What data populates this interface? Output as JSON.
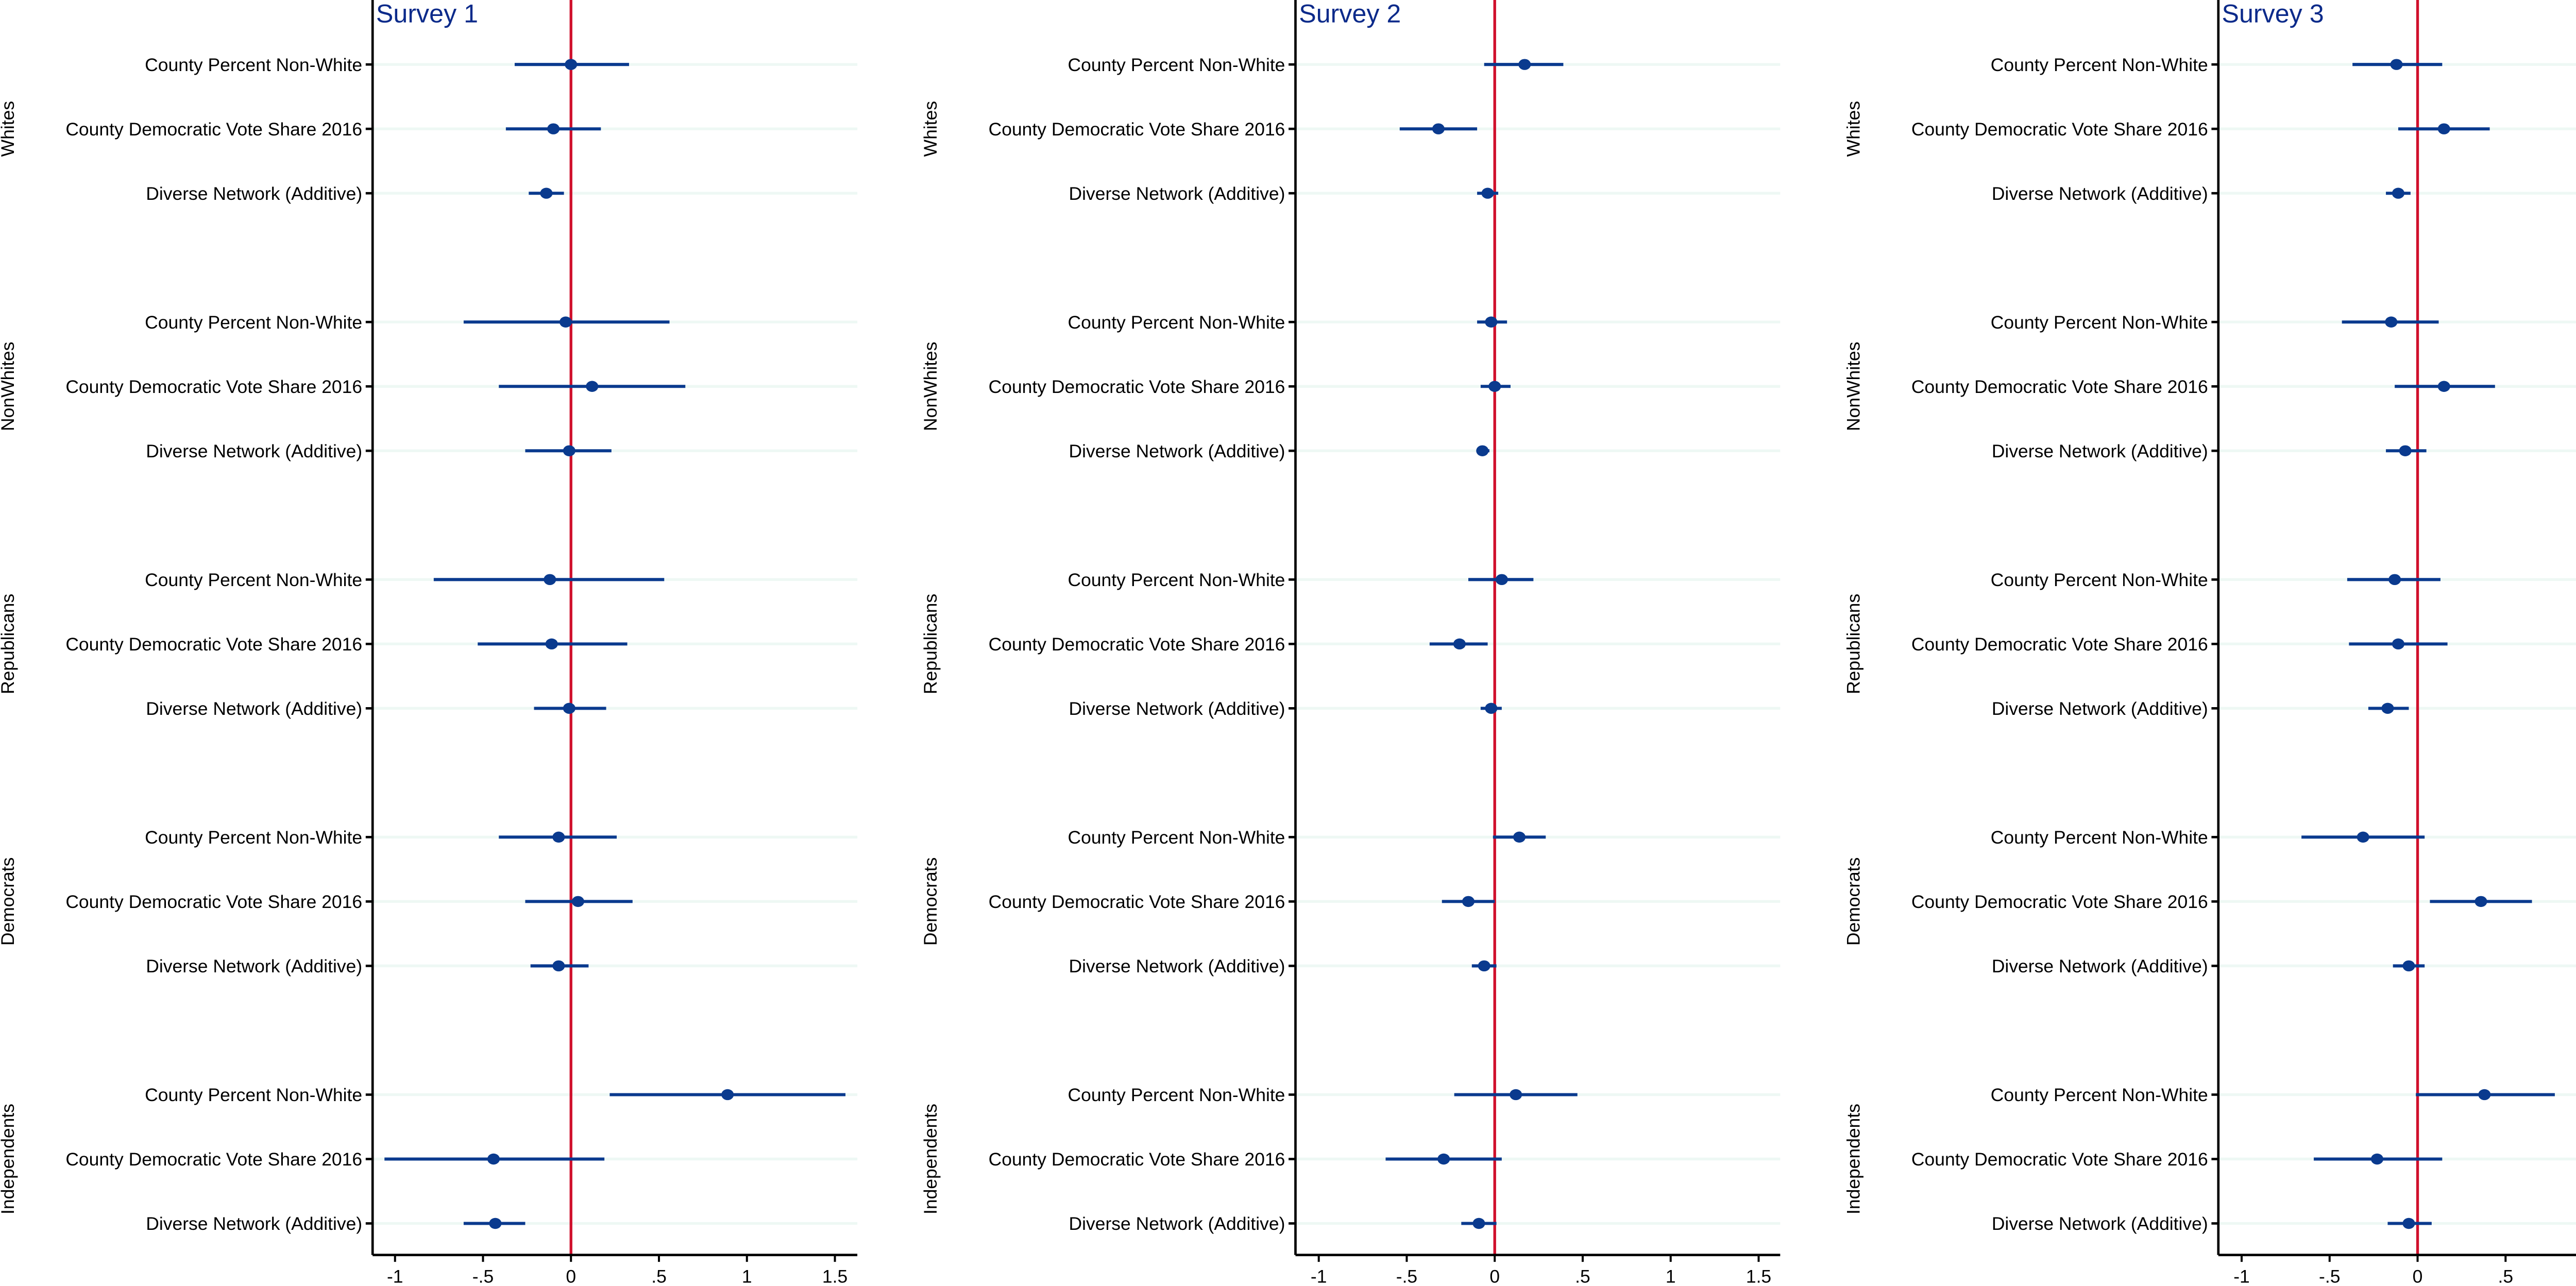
{
  "chart_data": [
    {
      "type": "scatter",
      "title": "Survey 1",
      "xlim": [
        -1.13,
        1.63
      ],
      "xticks": [
        -1,
        -0.5,
        0,
        0.5,
        1,
        1.5
      ],
      "xtick_labels": [
        "-1",
        "-.5",
        "0",
        ".5",
        "1",
        "1.5"
      ],
      "reference_line": 0,
      "grid": true,
      "groups": [
        {
          "name": "Whites",
          "rows": [
            {
              "label": "County Percent Non-White",
              "estimate": 0.0,
              "ci": [
                -0.32,
                0.33
              ]
            },
            {
              "label": "County Democratic Vote Share 2016",
              "estimate": -0.1,
              "ci": [
                -0.37,
                0.17
              ]
            },
            {
              "label": "Diverse Network (Additive)",
              "estimate": -0.14,
              "ci": [
                -0.24,
                -0.04
              ]
            }
          ]
        },
        {
          "name": "NonWhites",
          "rows": [
            {
              "label": "County Percent Non-White",
              "estimate": -0.03,
              "ci": [
                -0.61,
                0.56
              ]
            },
            {
              "label": "County Democratic Vote Share 2016",
              "estimate": 0.12,
              "ci": [
                -0.41,
                0.65
              ]
            },
            {
              "label": "Diverse Network (Additive)",
              "estimate": -0.01,
              "ci": [
                -0.26,
                0.23
              ]
            }
          ]
        },
        {
          "name": "Republicans",
          "rows": [
            {
              "label": "County Percent Non-White",
              "estimate": -0.12,
              "ci": [
                -0.78,
                0.53
              ]
            },
            {
              "label": "County Democratic Vote Share 2016",
              "estimate": -0.11,
              "ci": [
                -0.53,
                0.32
              ]
            },
            {
              "label": "Diverse Network (Additive)",
              "estimate": -0.01,
              "ci": [
                -0.21,
                0.2
              ]
            }
          ]
        },
        {
          "name": "Democrats",
          "rows": [
            {
              "label": "County Percent Non-White",
              "estimate": -0.07,
              "ci": [
                -0.41,
                0.26
              ]
            },
            {
              "label": "County Democratic Vote Share 2016",
              "estimate": 0.04,
              "ci": [
                -0.26,
                0.35
              ]
            },
            {
              "label": "Diverse Network (Additive)",
              "estimate": -0.07,
              "ci": [
                -0.23,
                0.1
              ]
            }
          ]
        },
        {
          "name": "Independents",
          "rows": [
            {
              "label": "County Percent Non-White",
              "estimate": 0.89,
              "ci": [
                0.22,
                1.56
              ]
            },
            {
              "label": "County Democratic Vote Share 2016",
              "estimate": -0.44,
              "ci": [
                -1.06,
                0.19
              ]
            },
            {
              "label": "Diverse Network (Additive)",
              "estimate": -0.43,
              "ci": [
                -0.61,
                -0.26
              ]
            }
          ]
        }
      ]
    },
    {
      "type": "scatter",
      "title": "Survey 2",
      "xlim": [
        -1.13,
        1.63
      ],
      "xticks": [
        -1,
        -0.5,
        0,
        0.5,
        1,
        1.5
      ],
      "xtick_labels": [
        "-1",
        "-.5",
        "0",
        ".5",
        "1",
        "1.5"
      ],
      "reference_line": 0,
      "grid": true,
      "groups": [
        {
          "name": "Whites",
          "rows": [
            {
              "label": "County Percent Non-White",
              "estimate": 0.17,
              "ci": [
                -0.06,
                0.39
              ]
            },
            {
              "label": "County Democratic Vote Share 2016",
              "estimate": -0.32,
              "ci": [
                -0.54,
                -0.1
              ]
            },
            {
              "label": "Diverse Network (Additive)",
              "estimate": -0.04,
              "ci": [
                -0.1,
                0.02
              ]
            }
          ]
        },
        {
          "name": "NonWhites",
          "rows": [
            {
              "label": "County Percent Non-White",
              "estimate": -0.02,
              "ci": [
                -0.1,
                0.07
              ]
            },
            {
              "label": "County Democratic Vote Share 2016",
              "estimate": 0.0,
              "ci": [
                -0.08,
                0.09
              ]
            },
            {
              "label": "Diverse Network (Additive)",
              "estimate": -0.07,
              "ci": [
                -0.1,
                -0.03
              ]
            }
          ]
        },
        {
          "name": "Republicans",
          "rows": [
            {
              "label": "County Percent Non-White",
              "estimate": 0.04,
              "ci": [
                -0.15,
                0.22
              ]
            },
            {
              "label": "County Democratic Vote Share 2016",
              "estimate": -0.2,
              "ci": [
                -0.37,
                -0.04
              ]
            },
            {
              "label": "Diverse Network (Additive)",
              "estimate": -0.02,
              "ci": [
                -0.08,
                0.04
              ]
            }
          ]
        },
        {
          "name": "Democrats",
          "rows": [
            {
              "label": "County Percent Non-White",
              "estimate": 0.14,
              "ci": [
                -0.01,
                0.29
              ]
            },
            {
              "label": "County Democratic Vote Share 2016",
              "estimate": -0.15,
              "ci": [
                -0.3,
                0.0
              ]
            },
            {
              "label": "Diverse Network (Additive)",
              "estimate": -0.06,
              "ci": [
                -0.13,
                0.01
              ]
            }
          ]
        },
        {
          "name": "Independents",
          "rows": [
            {
              "label": "County Percent Non-White",
              "estimate": 0.12,
              "ci": [
                -0.23,
                0.47
              ]
            },
            {
              "label": "County Democratic Vote Share 2016",
              "estimate": -0.29,
              "ci": [
                -0.62,
                0.04
              ]
            },
            {
              "label": "Diverse Network (Additive)",
              "estimate": -0.09,
              "ci": [
                -0.19,
                0.01
              ]
            }
          ]
        }
      ]
    },
    {
      "type": "scatter",
      "title": "Survey 3",
      "xlim": [
        -1.13,
        1.64
      ],
      "xticks": [
        -1,
        -0.5,
        0,
        0.5,
        1,
        1.5
      ],
      "xtick_labels": [
        "-1",
        "-.5",
        "0",
        ".5",
        "1",
        "1.5"
      ],
      "reference_line": 0,
      "grid": true,
      "groups": [
        {
          "name": "Whites",
          "rows": [
            {
              "label": "County Percent Non-White",
              "estimate": -0.12,
              "ci": [
                -0.37,
                0.14
              ]
            },
            {
              "label": "County Democratic Vote Share 2016",
              "estimate": 0.15,
              "ci": [
                -0.11,
                0.41
              ]
            },
            {
              "label": "Diverse Network (Additive)",
              "estimate": -0.11,
              "ci": [
                -0.18,
                -0.04
              ]
            }
          ]
        },
        {
          "name": "NonWhites",
          "rows": [
            {
              "label": "County Percent Non-White",
              "estimate": -0.15,
              "ci": [
                -0.43,
                0.12
              ]
            },
            {
              "label": "County Democratic Vote Share 2016",
              "estimate": 0.15,
              "ci": [
                -0.13,
                0.44
              ]
            },
            {
              "label": "Diverse Network (Additive)",
              "estimate": -0.07,
              "ci": [
                -0.18,
                0.05
              ]
            }
          ]
        },
        {
          "name": "Republicans",
          "rows": [
            {
              "label": "County Percent Non-White",
              "estimate": -0.13,
              "ci": [
                -0.4,
                0.13
              ]
            },
            {
              "label": "County Democratic Vote Share 2016",
              "estimate": -0.11,
              "ci": [
                -0.39,
                0.17
              ]
            },
            {
              "label": "Diverse Network (Additive)",
              "estimate": -0.17,
              "ci": [
                -0.28,
                -0.05
              ]
            }
          ]
        },
        {
          "name": "Democrats",
          "rows": [
            {
              "label": "County Percent Non-White",
              "estimate": -0.31,
              "ci": [
                -0.66,
                0.04
              ]
            },
            {
              "label": "County Democratic Vote Share 2016",
              "estimate": 0.36,
              "ci": [
                0.07,
                0.65
              ]
            },
            {
              "label": "Diverse Network (Additive)",
              "estimate": -0.05,
              "ci": [
                -0.14,
                0.04
              ]
            }
          ]
        },
        {
          "name": "Independents",
          "rows": [
            {
              "label": "County Percent Non-White",
              "estimate": 0.38,
              "ci": [
                -0.01,
                0.78
              ]
            },
            {
              "label": "County Democratic Vote Share 2016",
              "estimate": -0.23,
              "ci": [
                -0.59,
                0.14
              ]
            },
            {
              "label": "Diverse Network (Additive)",
              "estimate": -0.05,
              "ci": [
                -0.17,
                0.08
              ]
            }
          ]
        }
      ]
    }
  ],
  "colors": {
    "point": "#0a3a8e",
    "ci_line": "#0a3a8e",
    "reference_line": "#d0102c",
    "gridline": "#eef8f4",
    "title": "#0b2a8a",
    "axis": "#000000"
  }
}
